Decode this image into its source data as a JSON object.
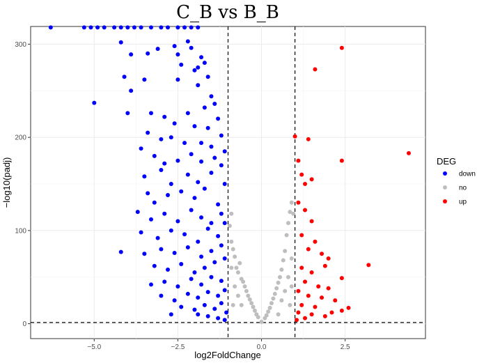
{
  "chart_data": {
    "type": "scatter",
    "title": "C_B vs B_B",
    "xlabel": "log2FoldChange",
    "ylabel": "−log10(padj)",
    "xlim": [
      -6.9,
      4.9
    ],
    "ylim": [
      -16,
      319
    ],
    "x_ticks": [
      -5.0,
      -2.5,
      0.0,
      2.5
    ],
    "x_tick_labels": [
      "−5.0",
      "−2.5",
      "0.0",
      "2.5"
    ],
    "y_ticks": [
      0,
      100,
      200,
      300
    ],
    "y_tick_labels": [
      "0",
      "100",
      "200",
      "300"
    ],
    "grid": true,
    "legend_position": "right",
    "legend_title": "DEG",
    "thresholds": {
      "vertical": [
        -1,
        1
      ],
      "horizontal": 1.3
    },
    "series": [
      {
        "name": "down",
        "color": "#0000ff",
        "points": [
          [
            -6.3,
            318
          ],
          [
            -5.3,
            318
          ],
          [
            -5.1,
            318
          ],
          [
            -4.9,
            318
          ],
          [
            -4.7,
            318
          ],
          [
            -4.4,
            318
          ],
          [
            -4.2,
            318
          ],
          [
            -4.0,
            318
          ],
          [
            -3.8,
            318
          ],
          [
            -3.6,
            318
          ],
          [
            -3.3,
            318
          ],
          [
            -3.0,
            318
          ],
          [
            -2.8,
            318
          ],
          [
            -2.5,
            318
          ],
          [
            -2.3,
            318
          ],
          [
            -2.1,
            318
          ],
          [
            -1.9,
            318
          ],
          [
            -4.2,
            302
          ],
          [
            -3.9,
            289
          ],
          [
            -3.1,
            295
          ],
          [
            -2.6,
            298
          ],
          [
            -2.5,
            289
          ],
          [
            -2.2,
            303
          ],
          [
            -2.1,
            296
          ],
          [
            -3.4,
            290
          ],
          [
            -1.9,
            275
          ],
          [
            -2.4,
            278
          ],
          [
            -1.8,
            286
          ],
          [
            -2.0,
            272
          ],
          [
            -1.7,
            280
          ],
          [
            -1.6,
            265
          ],
          [
            -2.5,
            262
          ],
          [
            -1.9,
            256
          ],
          [
            -1.5,
            244
          ],
          [
            -4.1,
            265
          ],
          [
            -3.5,
            262
          ],
          [
            -3.9,
            250
          ],
          [
            -5.0,
            237
          ],
          [
            -4.0,
            226
          ],
          [
            -3.3,
            226
          ],
          [
            -2.9,
            222
          ],
          [
            -2.6,
            215
          ],
          [
            -2.2,
            226
          ],
          [
            -2.0,
            212
          ],
          [
            -1.7,
            232
          ],
          [
            -1.4,
            236
          ],
          [
            -1.6,
            210
          ],
          [
            -1.3,
            220
          ],
          [
            -3.4,
            205
          ],
          [
            -3.0,
            198
          ],
          [
            -2.7,
            200
          ],
          [
            -2.3,
            194
          ],
          [
            -1.8,
            194
          ],
          [
            -1.5,
            190
          ],
          [
            -1.2,
            202
          ],
          [
            -3.6,
            188
          ],
          [
            -3.2,
            180
          ],
          [
            -2.9,
            172
          ],
          [
            -2.5,
            175
          ],
          [
            -2.1,
            182
          ],
          [
            -1.8,
            174
          ],
          [
            -1.4,
            178
          ],
          [
            -1.1,
            185
          ],
          [
            -3.5,
            158
          ],
          [
            -3.0,
            165
          ],
          [
            -2.7,
            150
          ],
          [
            -2.2,
            160
          ],
          [
            -1.9,
            152
          ],
          [
            -1.5,
            162
          ],
          [
            -1.2,
            170
          ],
          [
            -3.4,
            140
          ],
          [
            -3.2,
            130
          ],
          [
            -2.8,
            138
          ],
          [
            -2.4,
            142
          ],
          [
            -2.0,
            135
          ],
          [
            -1.7,
            145
          ],
          [
            -1.3,
            128
          ],
          [
            -1.1,
            150
          ],
          [
            -3.7,
            120
          ],
          [
            -3.3,
            112
          ],
          [
            -2.9,
            118
          ],
          [
            -2.5,
            110
          ],
          [
            -2.1,
            122
          ],
          [
            -1.8,
            114
          ],
          [
            -1.5,
            108
          ],
          [
            -1.2,
            118
          ],
          [
            -3.6,
            98
          ],
          [
            -3.1,
            92
          ],
          [
            -2.7,
            100
          ],
          [
            -2.3,
            96
          ],
          [
            -1.9,
            88
          ],
          [
            -1.6,
            102
          ],
          [
            -1.3,
            94
          ],
          [
            -1.1,
            108
          ],
          [
            -4.2,
            77
          ],
          [
            -3.5,
            75
          ],
          [
            -3.0,
            80
          ],
          [
            -2.6,
            76
          ],
          [
            -2.2,
            82
          ],
          [
            -1.8,
            72
          ],
          [
            -1.5,
            78
          ],
          [
            -1.2,
            84
          ],
          [
            -3.2,
            62
          ],
          [
            -2.8,
            58
          ],
          [
            -2.4,
            64
          ],
          [
            -2.0,
            55
          ],
          [
            -1.7,
            60
          ],
          [
            -1.4,
            66
          ],
          [
            -1.1,
            70
          ],
          [
            -3.3,
            42
          ],
          [
            -2.9,
            45
          ],
          [
            -2.5,
            40
          ],
          [
            -2.1,
            48
          ],
          [
            -1.8,
            42
          ],
          [
            -1.5,
            50
          ],
          [
            -1.2,
            46
          ],
          [
            -3.0,
            30
          ],
          [
            -2.6,
            25
          ],
          [
            -2.2,
            32
          ],
          [
            -1.9,
            28
          ],
          [
            -1.6,
            34
          ],
          [
            -1.3,
            30
          ],
          [
            -1.1,
            36
          ],
          [
            -2.4,
            18
          ],
          [
            -2.0,
            15
          ],
          [
            -1.7,
            20
          ],
          [
            -1.4,
            16
          ],
          [
            -1.2,
            22
          ],
          [
            -1.05,
            12
          ],
          [
            -1.6,
            8
          ],
          [
            -1.3,
            6
          ],
          [
            -1.1,
            4
          ],
          [
            -1.9,
            10
          ],
          [
            -2.7,
            10
          ]
        ]
      },
      {
        "name": "no",
        "color": "#bebebe",
        "points": [
          [
            -0.9,
            88
          ],
          [
            -0.85,
            80
          ],
          [
            -0.8,
            72
          ],
          [
            -0.75,
            60
          ],
          [
            -0.7,
            55
          ],
          [
            -0.6,
            48
          ],
          [
            -0.5,
            40
          ],
          [
            -0.4,
            30
          ],
          [
            -0.3,
            22
          ],
          [
            -0.2,
            14
          ],
          [
            -0.1,
            7
          ],
          [
            0.0,
            2
          ],
          [
            0.1,
            6
          ],
          [
            0.2,
            13
          ],
          [
            0.3,
            22
          ],
          [
            0.4,
            32
          ],
          [
            0.5,
            44
          ],
          [
            0.6,
            58
          ],
          [
            0.7,
            78
          ],
          [
            0.75,
            95
          ],
          [
            0.8,
            108
          ],
          [
            0.85,
            120
          ],
          [
            0.9,
            130
          ],
          [
            0.95,
            118
          ],
          [
            0.65,
            68
          ],
          [
            0.55,
            50
          ],
          [
            -0.95,
            105
          ],
          [
            -0.9,
            118
          ],
          [
            -0.65,
            65
          ],
          [
            -0.55,
            45
          ],
          [
            -0.45,
            35
          ],
          [
            -0.35,
            26
          ],
          [
            -0.25,
            18
          ],
          [
            -0.15,
            10
          ],
          [
            0.15,
            9
          ],
          [
            0.25,
            17
          ],
          [
            0.35,
            27
          ],
          [
            0.45,
            38
          ],
          [
            -0.9,
            60
          ],
          [
            -0.8,
            40
          ],
          [
            -0.7,
            30
          ],
          [
            -0.6,
            20
          ],
          [
            0.6,
            25
          ],
          [
            0.7,
            35
          ],
          [
            0.8,
            50
          ],
          [
            0.9,
            70
          ],
          [
            0.9,
            40
          ],
          [
            -0.85,
            20
          ],
          [
            0.85,
            20
          ],
          [
            0.5,
            10
          ]
        ]
      },
      {
        "name": "up",
        "color": "#ff0000",
        "points": [
          [
            2.4,
            296
          ],
          [
            1.6,
            273
          ],
          [
            4.4,
            183
          ],
          [
            2.4,
            175
          ],
          [
            1.4,
            198
          ],
          [
            1.0,
            201
          ],
          [
            1.1,
            175
          ],
          [
            1.2,
            160
          ],
          [
            1.3,
            150
          ],
          [
            1.5,
            155
          ],
          [
            1.1,
            130
          ],
          [
            1.3,
            122
          ],
          [
            1.5,
            110
          ],
          [
            1.2,
            95
          ],
          [
            1.6,
            88
          ],
          [
            1.4,
            80
          ],
          [
            1.8,
            75
          ],
          [
            2.0,
            70
          ],
          [
            1.9,
            62
          ],
          [
            3.2,
            63
          ],
          [
            1.2,
            60
          ],
          [
            1.5,
            55
          ],
          [
            2.4,
            49
          ],
          [
            1.3,
            45
          ],
          [
            1.7,
            40
          ],
          [
            2.0,
            38
          ],
          [
            1.1,
            35
          ],
          [
            1.4,
            30
          ],
          [
            1.8,
            28
          ],
          [
            2.2,
            25
          ],
          [
            1.2,
            20
          ],
          [
            1.6,
            18
          ],
          [
            2.6,
            17
          ],
          [
            2.4,
            14
          ],
          [
            1.1,
            12
          ],
          [
            1.5,
            10
          ],
          [
            1.9,
            8
          ],
          [
            1.3,
            6
          ],
          [
            1.05,
            4
          ],
          [
            2.1,
            12
          ]
        ]
      }
    ]
  }
}
